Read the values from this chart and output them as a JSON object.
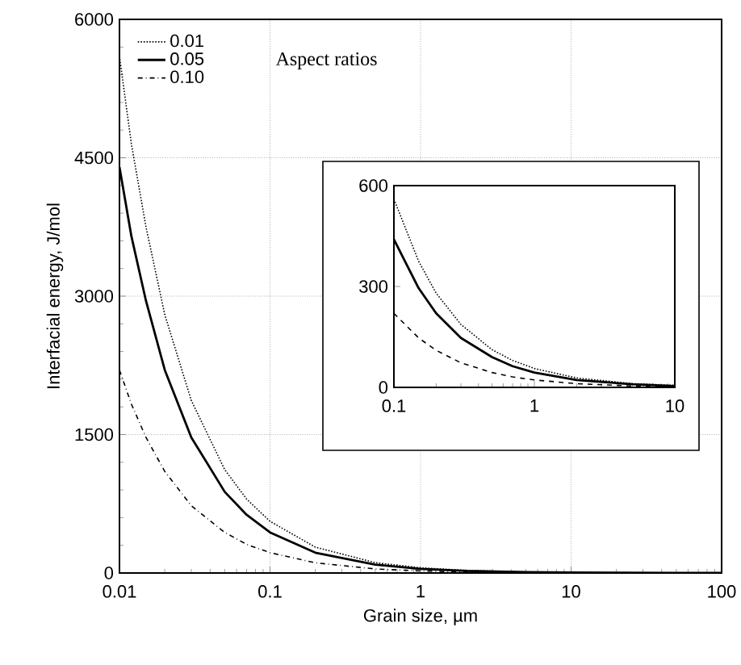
{
  "chart_data": [
    {
      "type": "line",
      "xlabel": "Grain size, µm",
      "ylabel": "Interfacial energy, J/mol",
      "legend_title": "Aspect ratios",
      "log": "x",
      "grid": true,
      "legend": "top left",
      "xlim": [
        0.01,
        100
      ],
      "ylim": [
        0,
        6000
      ],
      "xticks": [
        0.01,
        0.1,
        1,
        10,
        100
      ],
      "yticks": [
        0,
        1500,
        3000,
        4500,
        6000
      ],
      "x": [
        0.01,
        0.012,
        0.015,
        0.02,
        0.03,
        0.05,
        0.07,
        0.1,
        0.2,
        0.5,
        1,
        2,
        5,
        10,
        20,
        50,
        100
      ],
      "series": [
        {
          "name": "0.01",
          "color": "#000000",
          "line_style": "dotted",
          "values": [
            5600,
            4650,
            3750,
            2800,
            1870,
            1120,
            800,
            560,
            280,
            112,
            56,
            28,
            11,
            6,
            3,
            1,
            0
          ]
        },
        {
          "name": "0.05",
          "color": "#000000",
          "line_style": "solid",
          "values": [
            4400,
            3650,
            2950,
            2200,
            1470,
            880,
            630,
            440,
            220,
            90,
            44,
            22,
            9,
            4,
            2,
            1,
            0
          ]
        },
        {
          "name": "0.10",
          "color": "#000000",
          "line_style": "dashdot",
          "values": [
            2200,
            1830,
            1470,
            1100,
            730,
            440,
            310,
            220,
            110,
            44,
            22,
            11,
            4,
            2,
            1,
            0,
            0
          ]
        }
      ]
    },
    {
      "type": "line",
      "log": "x",
      "xlim": [
        0.1,
        10
      ],
      "ylim": [
        0,
        600
      ],
      "xticks": [
        0.1,
        1,
        10
      ],
      "yticks": [
        0,
        300,
        600
      ],
      "x": [
        0.1,
        0.15,
        0.2,
        0.3,
        0.5,
        0.7,
        1,
        2,
        5,
        10
      ],
      "series": [
        {
          "color": "#000000",
          "line_style": "dotted",
          "values": [
            560,
            375,
            280,
            187,
            112,
            80,
            56,
            28,
            11,
            6
          ]
        },
        {
          "color": "#000000",
          "line_style": "solid",
          "values": [
            440,
            295,
            220,
            147,
            90,
            63,
            44,
            22,
            9,
            4
          ]
        },
        {
          "color": "#000000",
          "line_style": "dashed",
          "values": [
            220,
            147,
            110,
            73,
            44,
            31,
            22,
            11,
            4,
            2
          ]
        }
      ]
    }
  ]
}
